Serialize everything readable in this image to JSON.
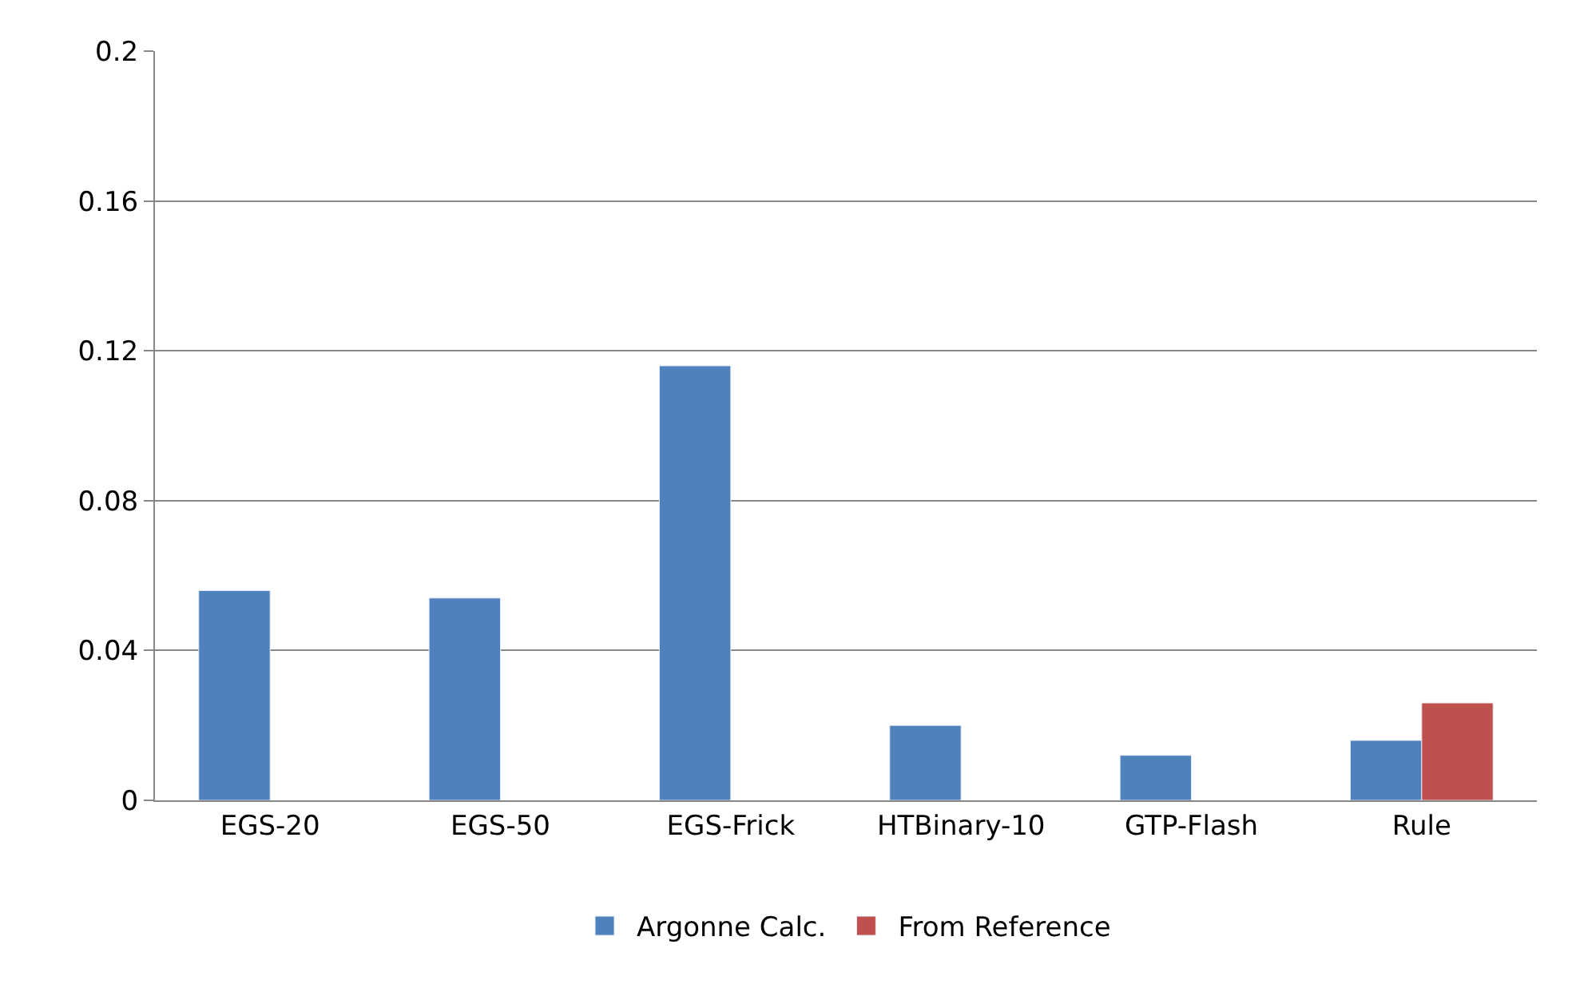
{
  "chart_data": {
    "type": "bar",
    "categories": [
      "EGS-20",
      "EGS-50",
      "EGS-Frick",
      "HTBinary-10",
      "GTP-Flash",
      "Rule"
    ],
    "series": [
      {
        "name": "Argonne Calc.",
        "color": "#4f81bd",
        "values": [
          0.056,
          0.054,
          0.116,
          0.02,
          0.012,
          0.016
        ]
      },
      {
        "name": "From Reference",
        "color": "#c0504d",
        "values": [
          null,
          null,
          null,
          null,
          null,
          0.026
        ]
      }
    ],
    "ylim": [
      0,
      0.2
    ],
    "yticks": [
      0,
      0.04,
      0.08,
      0.12,
      0.16,
      0.2
    ],
    "grid": "y",
    "legend": "bottom"
  }
}
